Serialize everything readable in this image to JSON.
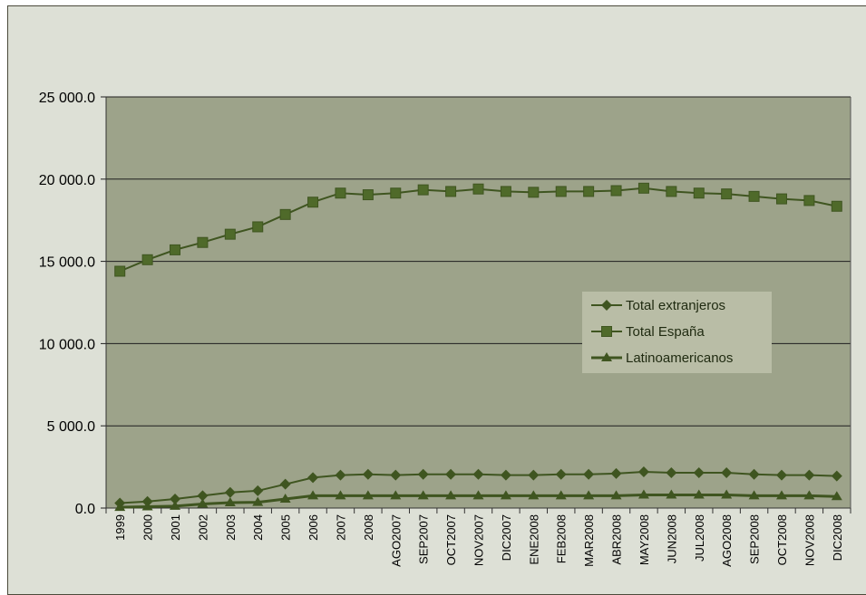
{
  "chart_data": {
    "type": "line",
    "title": "",
    "xlabel": "",
    "ylabel": "",
    "ylim": [
      0,
      25000
    ],
    "yticks": [
      0,
      5000,
      10000,
      15000,
      20000,
      25000
    ],
    "ytick_labels": [
      "0.0",
      "5 000.0",
      "10 000.0",
      "15 000.0",
      "20 000.0",
      "25 000.0"
    ],
    "grid": true,
    "legend_position": "center-right",
    "colors": {
      "plot_bg": "#9da38a",
      "frame_bg": "#dde0d6",
      "series": "#3f5520",
      "legend_bg": "#b9bda6",
      "grid": "#1e1e1e"
    },
    "categories": [
      "1999",
      "2000",
      "2001",
      "2002",
      "2003",
      "2004",
      "2005",
      "2006",
      "2007",
      "2008",
      "AGO2007",
      "SEP2007",
      "OCT2007",
      "NOV2007",
      "DIC2007",
      "ENE2008",
      "FEB2008",
      "MAR2008",
      "ABR2008",
      "MAY2008",
      "JUN2008",
      "JUL2008",
      "AGO2008",
      "SEP2008",
      "OCT2008",
      "NOV2008",
      "DIC2008"
    ],
    "series": [
      {
        "name": "Total extranjeros",
        "marker": "diamond",
        "values": [
          300,
          400,
          550,
          750,
          950,
          1050,
          1450,
          1850,
          2000,
          2050,
          2000,
          2050,
          2050,
          2050,
          2000,
          2000,
          2050,
          2050,
          2100,
          2200,
          2150,
          2150,
          2150,
          2050,
          2000,
          2000,
          1950
        ]
      },
      {
        "name": "Total España",
        "marker": "square",
        "values": [
          14400,
          15100,
          15700,
          16150,
          16650,
          17100,
          17850,
          18600,
          19150,
          19050,
          19150,
          19350,
          19250,
          19400,
          19250,
          19200,
          19250,
          19250,
          19300,
          19450,
          19250,
          19150,
          19100,
          18950,
          18800,
          18700,
          18350
        ]
      },
      {
        "name": "Latinoamericanos",
        "marker": "triangle",
        "values": [
          50,
          80,
          120,
          250,
          330,
          350,
          550,
          750,
          750,
          750,
          750,
          750,
          750,
          750,
          750,
          750,
          750,
          750,
          750,
          800,
          800,
          800,
          800,
          750,
          750,
          750,
          700
        ]
      }
    ]
  }
}
